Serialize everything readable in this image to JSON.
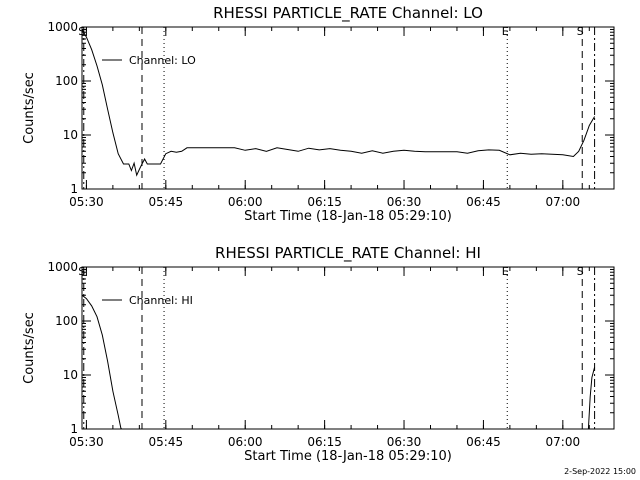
{
  "chart_data": [
    {
      "type": "line",
      "title": "RHESSI PARTICLE_RATE Channel: LO",
      "xlabel": "Start Time (18-Jan-18 05:29:10)",
      "ylabel": "Counts/sec",
      "yscale": "log",
      "ylim": [
        1,
        1000
      ],
      "xlim": [
        "05:29:10",
        "07:09:40"
      ],
      "x_tick_labels": [
        "05:30",
        "05:45",
        "06:00",
        "06:15",
        "06:30",
        "06:45",
        "07:00"
      ],
      "y_tick_labels": [
        "1",
        "10",
        "100",
        "1000"
      ],
      "legend": {
        "position": "top-left",
        "entries": [
          "Channel: LO"
        ]
      },
      "event_markers": [
        {
          "label": "S",
          "time": "05:29:30",
          "style": "dash-dot"
        },
        {
          "label": "",
          "time": "05:40:30",
          "style": "dashed"
        },
        {
          "label": "",
          "time": "05:44:40",
          "style": "dotted"
        },
        {
          "label": "E",
          "time": "06:49:30",
          "style": "dotted"
        },
        {
          "label": "S",
          "time": "07:03:40",
          "style": "dashed"
        },
        {
          "label": "",
          "time": "07:06:00",
          "style": "dash-dot"
        }
      ],
      "series": [
        {
          "name": "Channel: LO",
          "x": [
            "05:29:10",
            "05:30:00",
            "05:31:00",
            "05:32:00",
            "05:33:00",
            "05:34:00",
            "05:35:00",
            "05:36:00",
            "05:37:00",
            "05:38:00",
            "05:38:30",
            "05:39:00",
            "05:39:30",
            "05:40:00",
            "05:40:30",
            "05:41:00",
            "05:41:30",
            "05:42:00",
            "05:43:00",
            "05:44:00",
            "05:45:00",
            "05:46:00",
            "05:47:00",
            "05:48:00",
            "05:49:00",
            "05:50:00",
            "05:52:00",
            "05:54:00",
            "05:56:00",
            "05:58:00",
            "06:00:00",
            "06:02:00",
            "06:04:00",
            "06:06:00",
            "06:08:00",
            "06:10:00",
            "06:12:00",
            "06:14:00",
            "06:16:00",
            "06:18:00",
            "06:20:00",
            "06:22:00",
            "06:24:00",
            "06:26:00",
            "06:28:00",
            "06:30:00",
            "06:32:00",
            "06:34:00",
            "06:36:00",
            "06:38:00",
            "06:40:00",
            "06:42:00",
            "06:44:00",
            "06:46:00",
            "06:48:00",
            "06:50:00",
            "06:52:00",
            "06:54:00",
            "06:56:00",
            "06:58:00",
            "07:00:00",
            "07:02:00",
            "07:03:00",
            "07:04:00",
            "07:05:00",
            "07:06:00"
          ],
          "y": [
            900,
            650,
            380,
            190,
            85,
            30,
            11,
            4.5,
            2.9,
            2.9,
            2.2,
            3.0,
            1.8,
            2.3,
            2.9,
            3.6,
            2.9,
            2.9,
            2.9,
            2.9,
            4.5,
            5.0,
            4.8,
            5.0,
            5.8,
            5.8,
            5.8,
            5.8,
            5.8,
            5.8,
            5.2,
            5.6,
            5.0,
            5.8,
            5.4,
            5.0,
            5.7,
            5.3,
            5.6,
            5.2,
            5.0,
            4.6,
            5.1,
            4.6,
            5.0,
            5.2,
            5.0,
            4.9,
            4.9,
            4.9,
            4.9,
            4.6,
            5.1,
            5.3,
            5.2,
            4.3,
            4.6,
            4.4,
            4.5,
            4.4,
            4.3,
            4.0,
            5.0,
            8.0,
            15,
            22
          ]
        }
      ]
    },
    {
      "type": "line",
      "title": "RHESSI PARTICLE_RATE Channel: HI",
      "xlabel": "Start Time (18-Jan-18 05:29:10)",
      "ylabel": "Counts/sec",
      "yscale": "log",
      "ylim": [
        1,
        1000
      ],
      "xlim": [
        "05:29:10",
        "07:09:40"
      ],
      "x_tick_labels": [
        "05:30",
        "05:45",
        "06:00",
        "06:15",
        "06:30",
        "06:45",
        "07:00"
      ],
      "y_tick_labels": [
        "1",
        "10",
        "100",
        "1000"
      ],
      "legend": {
        "position": "top-left",
        "entries": [
          "Channel: HI"
        ]
      },
      "event_markers": [
        {
          "label": "S",
          "time": "05:29:30",
          "style": "dash-dot"
        },
        {
          "label": "",
          "time": "05:40:30",
          "style": "dashed"
        },
        {
          "label": "",
          "time": "05:44:40",
          "style": "dotted"
        },
        {
          "label": "E",
          "time": "06:49:30",
          "style": "dotted"
        },
        {
          "label": "S",
          "time": "07:03:40",
          "style": "dashed"
        },
        {
          "label": "",
          "time": "07:06:00",
          "style": "dash-dot"
        }
      ],
      "series": [
        {
          "name": "Channel: HI",
          "x": [
            "05:29:10",
            "05:30:00",
            "05:31:00",
            "05:32:00",
            "05:33:00",
            "05:34:00",
            "05:35:00",
            "05:36:00",
            "05:36:30",
            "05:37:00"
          ],
          "y": [
            300,
            260,
            190,
            120,
            55,
            18,
            5.0,
            1.8,
            1.05,
            0.9
          ]
        },
        {
          "name": "Channel: HI",
          "x": [
            "07:04:50",
            "07:05:10",
            "07:05:30",
            "07:06:00"
          ],
          "y": [
            1.0,
            4.0,
            9.0,
            14
          ]
        }
      ]
    }
  ],
  "footer": {
    "date_stamp": "2-Sep-2022 15:00"
  }
}
